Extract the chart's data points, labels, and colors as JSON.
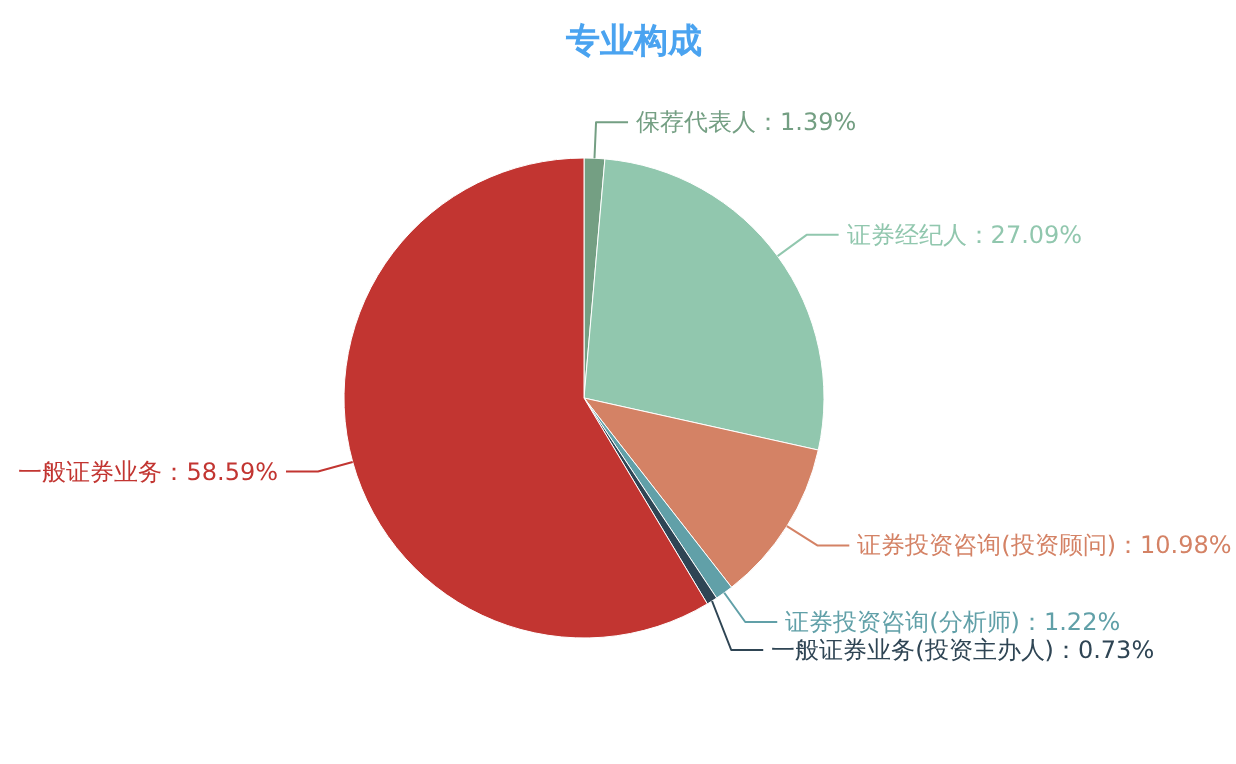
{
  "chart_data": {
    "type": "pie",
    "title": "专业构成",
    "categories": [
      "保荐代表人",
      "证券经纪人",
      "证券投资咨询(投资顾问)",
      "证券投资咨询(分析师)",
      "一般证券业务(投资主办人)",
      "一般证券业务"
    ],
    "values": [
      1.39,
      27.09,
      10.98,
      1.22,
      0.73,
      58.59
    ],
    "colors": [
      "#749f83",
      "#91c7ae",
      "#d48265",
      "#61a0a8",
      "#2f4554",
      "#c23531"
    ],
    "value_labels": [
      "1.39%",
      "27.09%",
      "10.98%",
      "1.22%",
      "0.73%",
      "58.59%"
    ]
  }
}
